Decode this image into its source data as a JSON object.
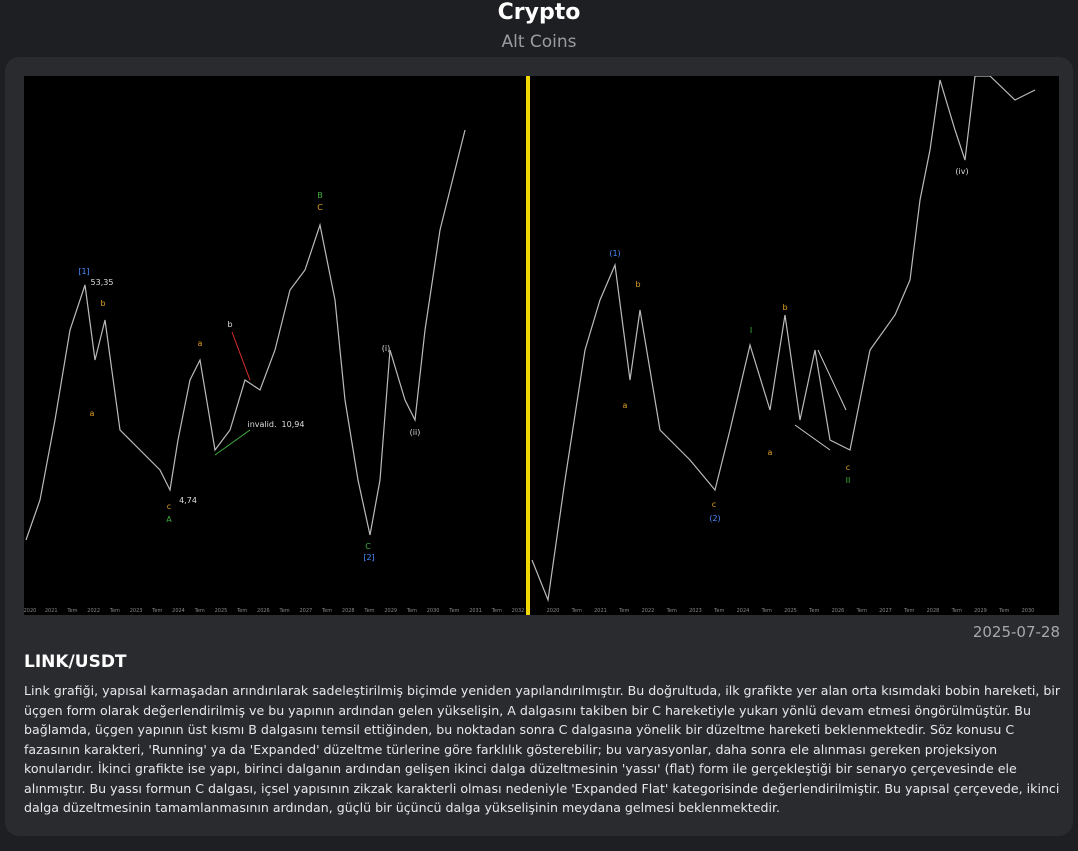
{
  "header": {
    "title": "Crypto",
    "subtitle": "Alt Coins"
  },
  "post": {
    "date": "2025-07-28",
    "title": "LINK/USDT",
    "body": "Link grafiği, yapısal karmaşadan arındırılarak sadeleştirilmiş biçimde yeniden yapılandırılmıştır. Bu doğrultuda, ilk grafikte yer alan orta kısımdaki bobin hareketi, bir üçgen form olarak değerlendirilmiş ve bu yapının ardından gelen yükselişin, A dalgasını takiben bir C hareketiyle yukarı yönlü devam etmesi öngörülmüştür. Bu bağlamda, üçgen yapının üst kısmı B dalgasını temsil ettiğinden, bu noktadan sonra C dalgasına yönelik bir düzeltme hareketi beklenmektedir. Söz konusu C fazasının karakteri, 'Running' ya da 'Expanded' düzeltme türlerine göre farklılık gösterebilir; bu varyasyonlar, daha sonra ele alınması gereken projeksiyon konularıdır. İkinci grafikte ise yapı, birinci dalganın ardından gelişen ikinci dalga düzeltmesinin 'yassı' (flat) form ile gerçekleştiği bir senaryo çerçevesinde ele alınmıştır. Bu yassı formun C dalgası, içsel yapısının zikzak karakterli olması nedeniyle 'Expanded Flat' kategorisinde değerlendirilmiştir. Bu yapısal çerçevede, ikinci dalga düzeltmesinin tamamlanmasının ardından, güçlü bir üçüncü dalga yükselişinin meydana gelmesi beklenmektedir."
  },
  "chart_image": {
    "left_labels": [
      "[1]",
      "53,35",
      "b",
      "a",
      "a",
      "b",
      "4,74",
      "c",
      "A",
      "B",
      "C",
      "invalid.",
      "10,94",
      "C",
      "[2]",
      "(i)",
      "(ii)"
    ],
    "right_labels": [
      "(1)",
      "b",
      "a",
      "I",
      "b",
      "a",
      "c",
      "(2)",
      "c",
      "II",
      "(iv)"
    ],
    "left_x_axis": [
      "2020",
      "2021",
      "Tem",
      "2022",
      "Tem",
      "2023",
      "Tem",
      "2024",
      "Tem",
      "2025",
      "Tem",
      "2026",
      "Tem",
      "2027",
      "Tem",
      "2028",
      "Tem",
      "2029",
      "Tem",
      "2030",
      "Tem",
      "2031",
      "Tem",
      "2032"
    ],
    "right_x_axis": [
      "2020",
      "Tem",
      "2021",
      "Tem",
      "2022",
      "Tem",
      "2023",
      "Tem",
      "2024",
      "Tem",
      "2025",
      "Tem",
      "2026",
      "Tem",
      "2027",
      "Tem",
      "2028",
      "Tem",
      "2029",
      "Tem",
      "2030"
    ]
  }
}
